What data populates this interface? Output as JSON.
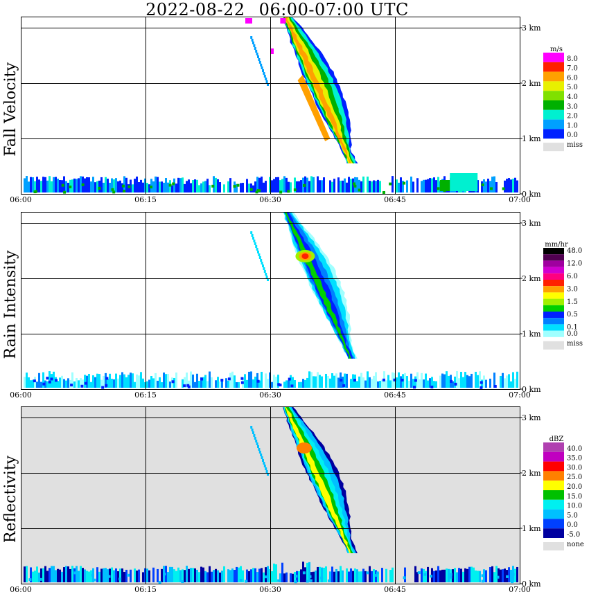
{
  "title": {
    "date": "2022-08-22",
    "range": "06:00-07:00 UTC"
  },
  "x_ticks": [
    "06:00",
    "06:15",
    "06:30",
    "06:45",
    "07:00"
  ],
  "y_ticks": [
    "0 km",
    "1 km",
    "2 km",
    "3 km"
  ],
  "panels": [
    {
      "name": "fall-velocity",
      "ylabel": "Fall Velocity",
      "unit": "m/s",
      "background": "#ffffff",
      "legend": [
        {
          "label": "8.0",
          "color": "#ff00ff"
        },
        {
          "label": "7.0",
          "color": "#ff2000"
        },
        {
          "label": "6.0",
          "color": "#ffa000"
        },
        {
          "label": "5.0",
          "color": "#e8f000"
        },
        {
          "label": "4.0",
          "color": "#80e000"
        },
        {
          "label": "3.0",
          "color": "#00b000"
        },
        {
          "label": "2.0",
          "color": "#00f0d0"
        },
        {
          "label": "1.0",
          "color": "#00a0ff"
        },
        {
          "label": "0.0",
          "color": "#0020ff"
        }
      ],
      "miss_label": "miss",
      "miss_color": "#e0e0e0"
    },
    {
      "name": "rain-intensity",
      "ylabel": "Rain Intensity",
      "unit": "mm/hr",
      "background": "#ffffff",
      "legend": [
        {
          "label": "48.0",
          "color": "#000000"
        },
        {
          "label": "",
          "color": "#500050"
        },
        {
          "label": "12.0",
          "color": "#a000a0"
        },
        {
          "label": "",
          "color": "#d000d0"
        },
        {
          "label": "6.0",
          "color": "#ff0080"
        },
        {
          "label": "",
          "color": "#ff2000"
        },
        {
          "label": "3.0",
          "color": "#ffa000"
        },
        {
          "label": "",
          "color": "#ffff00"
        },
        {
          "label": "1.5",
          "color": "#a0f000"
        },
        {
          "label": "",
          "color": "#00d000"
        },
        {
          "label": "0.5",
          "color": "#0020ff"
        },
        {
          "label": "",
          "color": "#0080ff"
        },
        {
          "label": "0.1",
          "color": "#00e0ff"
        },
        {
          "label": "0.0",
          "color": "#a0ffff"
        }
      ],
      "miss_label": "miss",
      "miss_color": "#e0e0e0"
    },
    {
      "name": "reflectivity",
      "ylabel": "Reflectivity",
      "unit": "dBZ",
      "background": "#e0e0e0",
      "legend": [
        {
          "label": "40.0",
          "color": "#b040b0"
        },
        {
          "label": "35.0",
          "color": "#c000c0"
        },
        {
          "label": "30.0",
          "color": "#ff0000"
        },
        {
          "label": "25.0",
          "color": "#ff8000"
        },
        {
          "label": "20.0",
          "color": "#ffff00"
        },
        {
          "label": "15.0",
          "color": "#00c000"
        },
        {
          "label": "10.0",
          "color": "#00f0f0"
        },
        {
          "label": "5.0",
          "color": "#00c0ff"
        },
        {
          "label": "0.0",
          "color": "#0040ff"
        },
        {
          "label": "-5.0",
          "color": "#0000a0"
        }
      ],
      "miss_label": "none",
      "miss_color": "#e0e0e0"
    }
  ],
  "chart_data": {
    "type": "heatmap",
    "x_range": [
      "06:00",
      "07:00"
    ],
    "ylim": [
      0,
      3.2
    ],
    "grid": true,
    "description_values": {
      "rain_shaft_top_time": "06:32",
      "rain_shaft_bottom_time": "06:40",
      "rain_shaft_top_km": 3.2,
      "rain_shaft_bottom_km": 0.6,
      "reflectivity_core_dbz": 25.0,
      "rain_intensity_core_mmhr": 6.0,
      "fall_velocity_core_ms": 6.0
    }
  }
}
